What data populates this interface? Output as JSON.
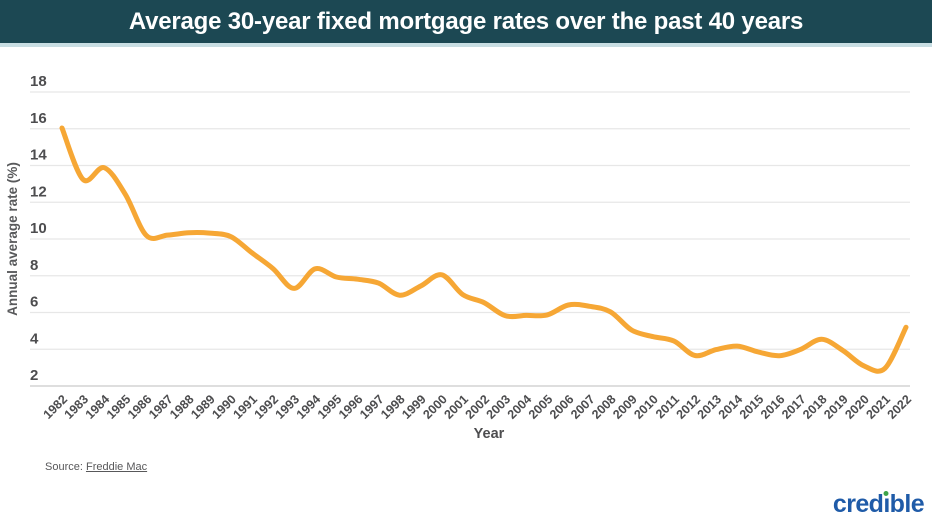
{
  "header": {
    "title": "Average 30-year fixed mortgage rates over the past 40 years",
    "bg_color": "#1C4853",
    "accent_border_color": "#C8DEE3"
  },
  "chart_data": {
    "type": "line",
    "title": "Average 30-year fixed mortgage rates over the past 40 years",
    "xlabel": "Year",
    "ylabel": "Annual average rate (%)",
    "x": [
      1982,
      1983,
      1984,
      1985,
      1986,
      1987,
      1988,
      1989,
      1990,
      1991,
      1992,
      1993,
      1994,
      1995,
      1996,
      1997,
      1998,
      1999,
      2000,
      2001,
      2002,
      2003,
      2004,
      2005,
      2006,
      2007,
      2008,
      2009,
      2010,
      2011,
      2012,
      2013,
      2014,
      2015,
      2016,
      2017,
      2018,
      2019,
      2020,
      2021,
      2022
    ],
    "values": [
      16.04,
      13.24,
      13.88,
      12.43,
      10.19,
      10.21,
      10.34,
      10.32,
      10.13,
      9.25,
      8.39,
      7.31,
      8.38,
      7.93,
      7.81,
      7.6,
      6.94,
      7.44,
      8.05,
      6.97,
      6.54,
      5.83,
      5.84,
      5.87,
      6.41,
      6.34,
      6.03,
      5.04,
      4.69,
      4.45,
      3.66,
      3.98,
      4.17,
      3.85,
      3.65,
      3.99,
      4.54,
      3.94,
      3.1,
      2.96,
      5.2
    ],
    "ylim": [
      2,
      18
    ],
    "yticks": [
      2,
      4,
      6,
      8,
      10,
      12,
      14,
      16,
      18
    ],
    "grid": true,
    "legend": "none",
    "smooth": true,
    "line_color": "#F6A735",
    "grid_color": "#E7E7E7",
    "axis_color": "#CACACA",
    "tick_label_color": "#4D4D4F",
    "axis_title_color": "#58595B"
  },
  "source": {
    "prefix": "Source: ",
    "link_text": "Freddie Mac"
  },
  "logo": {
    "text": "credible",
    "blue": "#1F5BA8",
    "green": "#3EA449"
  }
}
